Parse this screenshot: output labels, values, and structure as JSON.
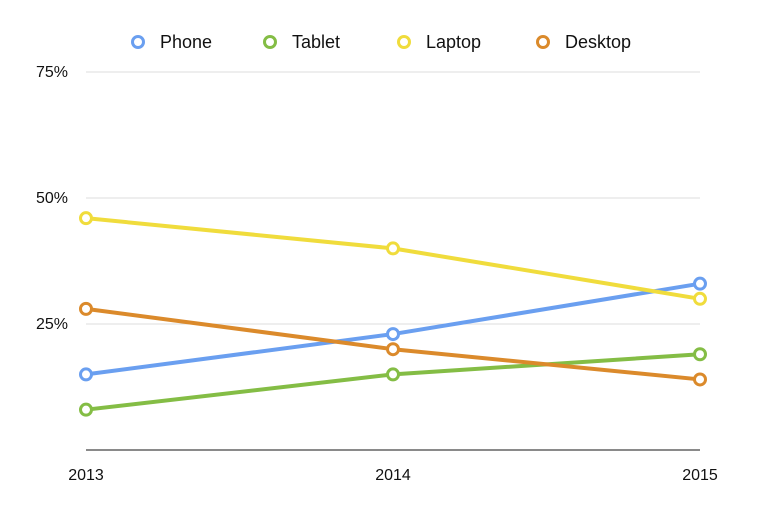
{
  "chart_data": {
    "type": "line",
    "categories": [
      "2013",
      "2014",
      "2015"
    ],
    "ylim": [
      0,
      75
    ],
    "yticks": [
      25,
      50,
      75
    ],
    "ytick_labels": [
      "25%",
      "50%",
      "75%"
    ],
    "grid": true,
    "legend_position": "top",
    "series": [
      {
        "name": "Phone",
        "color": "#6a9ff0",
        "values": [
          15,
          23,
          33
        ]
      },
      {
        "name": "Tablet",
        "color": "#84bd45",
        "values": [
          8,
          15,
          19
        ]
      },
      {
        "name": "Laptop",
        "color": "#f0dc3c",
        "values": [
          46,
          40,
          30
        ]
      },
      {
        "name": "Desktop",
        "color": "#db8a2b",
        "values": [
          28,
          20,
          14
        ]
      }
    ]
  }
}
